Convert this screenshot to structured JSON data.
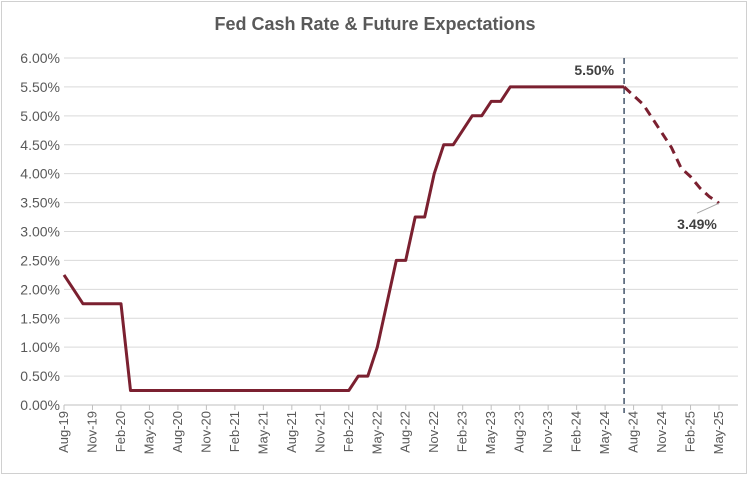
{
  "chart_data": {
    "type": "line",
    "title": "Fed Cash Rate & Future Expectations",
    "xlabel": "",
    "ylabel": "",
    "ylim": [
      0,
      0.06
    ],
    "y_ticks": [
      "0.00%",
      "0.50%",
      "1.00%",
      "1.50%",
      "2.00%",
      "2.50%",
      "3.00%",
      "3.50%",
      "4.00%",
      "4.50%",
      "5.00%",
      "5.50%",
      "6.00%"
    ],
    "x_ticks": [
      "Aug-19",
      "Nov-19",
      "Feb-20",
      "May-20",
      "Aug-20",
      "Nov-20",
      "Feb-21",
      "May-21",
      "Aug-21",
      "Nov-21",
      "Feb-22",
      "May-22",
      "Aug-22",
      "Nov-22",
      "Feb-23",
      "May-23",
      "Aug-23",
      "Nov-23",
      "Feb-24",
      "May-24",
      "Aug-24",
      "Nov-24",
      "Feb-25",
      "May-25"
    ],
    "grid": true,
    "colors": {
      "line": "#7b2030",
      "divider": "#44546a",
      "grid": "#d9d9d9",
      "axis": "#bfbfbf"
    },
    "series": [
      {
        "style": "solid",
        "points": [
          [
            "2019-08",
            0.0225
          ],
          [
            "2019-09",
            0.02
          ],
          [
            "2019-10",
            0.0175
          ],
          [
            "2019-11",
            0.0175
          ],
          [
            "2019-12",
            0.0175
          ],
          [
            "2020-01",
            0.0175
          ],
          [
            "2020-02",
            0.0175
          ],
          [
            "2020-03",
            0.0025
          ],
          [
            "2020-04",
            0.0025
          ],
          [
            "2020-05",
            0.0025
          ],
          [
            "2020-06",
            0.0025
          ],
          [
            "2020-07",
            0.0025
          ],
          [
            "2020-08",
            0.0025
          ],
          [
            "2020-09",
            0.0025
          ],
          [
            "2020-10",
            0.0025
          ],
          [
            "2020-11",
            0.0025
          ],
          [
            "2020-12",
            0.0025
          ],
          [
            "2021-01",
            0.0025
          ],
          [
            "2021-02",
            0.0025
          ],
          [
            "2021-03",
            0.0025
          ],
          [
            "2021-04",
            0.0025
          ],
          [
            "2021-05",
            0.0025
          ],
          [
            "2021-06",
            0.0025
          ],
          [
            "2021-07",
            0.0025
          ],
          [
            "2021-08",
            0.0025
          ],
          [
            "2021-09",
            0.0025
          ],
          [
            "2021-10",
            0.0025
          ],
          [
            "2021-11",
            0.0025
          ],
          [
            "2021-12",
            0.0025
          ],
          [
            "2022-01",
            0.0025
          ],
          [
            "2022-02",
            0.0025
          ],
          [
            "2022-03",
            0.005
          ],
          [
            "2022-04",
            0.005
          ],
          [
            "2022-05",
            0.01
          ],
          [
            "2022-06",
            0.0175
          ],
          [
            "2022-07",
            0.025
          ],
          [
            "2022-08",
            0.025
          ],
          [
            "2022-09",
            0.0325
          ],
          [
            "2022-10",
            0.0325
          ],
          [
            "2022-11",
            0.04
          ],
          [
            "2022-12",
            0.045
          ],
          [
            "2023-01",
            0.045
          ],
          [
            "2023-02",
            0.0475
          ],
          [
            "2023-03",
            0.05
          ],
          [
            "2023-04",
            0.05
          ],
          [
            "2023-05",
            0.0525
          ],
          [
            "2023-06",
            0.0525
          ],
          [
            "2023-07",
            0.055
          ],
          [
            "2023-08",
            0.055
          ],
          [
            "2023-09",
            0.055
          ],
          [
            "2023-10",
            0.055
          ],
          [
            "2023-11",
            0.055
          ],
          [
            "2023-12",
            0.055
          ],
          [
            "2024-01",
            0.055
          ],
          [
            "2024-02",
            0.055
          ],
          [
            "2024-03",
            0.055
          ],
          [
            "2024-04",
            0.055
          ],
          [
            "2024-05",
            0.055
          ],
          [
            "2024-06",
            0.055
          ],
          [
            "2024-07",
            0.055
          ]
        ]
      },
      {
        "style": "dashed",
        "points": [
          [
            "2024-07",
            0.055
          ],
          [
            "2024-08",
            0.0535
          ],
          [
            "2024-09",
            0.052
          ],
          [
            "2024-10",
            0.0495
          ],
          [
            "2024-11",
            0.047
          ],
          [
            "2024-12",
            0.0445
          ],
          [
            "2025-01",
            0.041
          ],
          [
            "2025-02",
            0.0395
          ],
          [
            "2025-03",
            0.0375
          ],
          [
            "2025-04",
            0.036
          ],
          [
            "2025-05",
            0.0349
          ]
        ]
      }
    ],
    "divider_at": "2024-07",
    "annotations": [
      {
        "text": "5.50%",
        "at": "2024-07",
        "value": 0.055
      },
      {
        "text": "3.49%",
        "at": "2025-05",
        "value": 0.0349
      }
    ]
  }
}
